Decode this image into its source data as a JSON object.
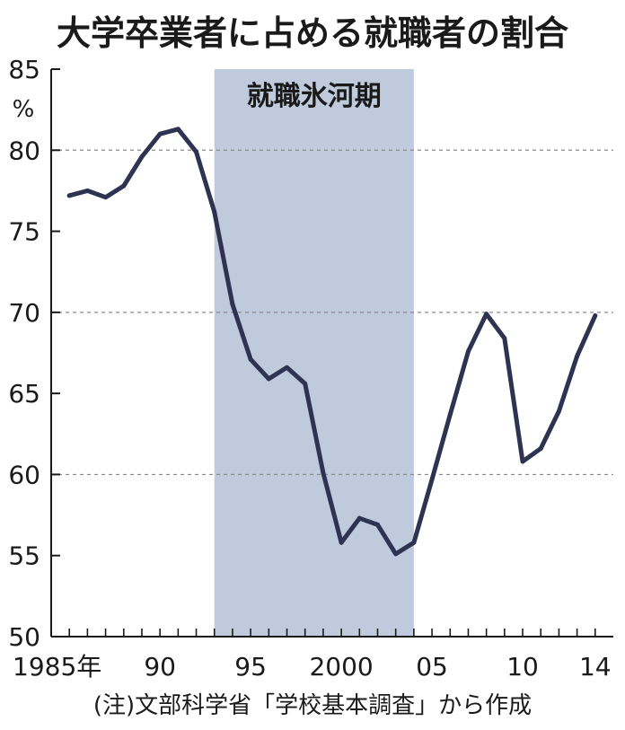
{
  "colors": {
    "line": "#2f3352",
    "band": "#bfcbdd",
    "axis": "#1a1a1a",
    "grid": "#8a8a8a"
  },
  "chart_data": {
    "type": "line",
    "title": "大学卒業者に占める就職者の割合",
    "unit": "%",
    "note": "(注)文部科学省「学校基本調査」から作成",
    "band": {
      "label": "就職氷河期",
      "from": 1993,
      "to": 2004
    },
    "xlim": [
      1984,
      2015
    ],
    "ylim": [
      50,
      85
    ],
    "yticks": [
      50,
      55,
      60,
      65,
      70,
      75,
      80,
      85
    ],
    "gridlines": [
      60,
      70,
      80
    ],
    "xtick_years": [
      1985,
      1986,
      1987,
      1988,
      1989,
      1990,
      1991,
      1992,
      1993,
      1994,
      1995,
      1996,
      1997,
      1998,
      1999,
      2000,
      2001,
      2002,
      2003,
      2004,
      2005,
      2006,
      2007,
      2008,
      2009,
      2010,
      2011,
      2012,
      2013,
      2014
    ],
    "xlabels": [
      {
        "year": 1985,
        "text": "1985年"
      },
      {
        "year": 1990,
        "text": "90"
      },
      {
        "year": 1995,
        "text": "95"
      },
      {
        "year": 2000,
        "text": "2000"
      },
      {
        "year": 2005,
        "text": "05"
      },
      {
        "year": 2010,
        "text": "10"
      },
      {
        "year": 2014,
        "text": "14"
      }
    ],
    "x": [
      1985,
      1986,
      1987,
      1988,
      1989,
      1990,
      1991,
      1992,
      1993,
      1994,
      1995,
      1996,
      1997,
      1998,
      1999,
      2000,
      2001,
      2002,
      2003,
      2004,
      2005,
      2006,
      2007,
      2008,
      2009,
      2010,
      2011,
      2012,
      2013,
      2014
    ],
    "values": [
      77.2,
      77.5,
      77.1,
      77.8,
      79.6,
      81.0,
      81.3,
      79.9,
      76.2,
      70.5,
      67.1,
      65.9,
      66.6,
      65.6,
      60.1,
      55.8,
      57.3,
      56.9,
      55.1,
      55.8,
      59.7,
      63.7,
      67.6,
      69.9,
      68.4,
      60.8,
      61.6,
      63.9,
      67.3,
      69.8
    ]
  }
}
